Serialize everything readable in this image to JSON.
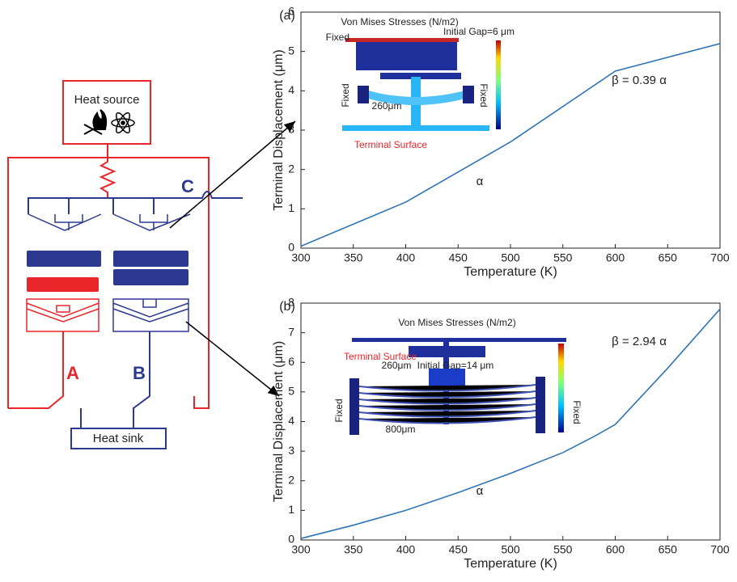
{
  "chart_data": [
    {
      "type": "line",
      "title": "(a)",
      "x_label": "Temperature (K)",
      "y_label": "Terminal Displacement (μm)",
      "x": [
        300,
        400,
        500,
        600,
        700
      ],
      "series": [
        {
          "color": "#2f74b5",
          "values": [
            0.05,
            1.17,
            2.7,
            4.5,
            5.2
          ]
        }
      ],
      "xlim": [
        300,
        700
      ],
      "xticks": [
        300,
        350,
        400,
        450,
        500,
        550,
        600,
        650,
        700
      ],
      "ylim": [
        0,
        6
      ],
      "yticks": [
        0,
        1,
        2,
        3,
        4,
        5,
        6
      ],
      "annotations": [
        "Von Mises Stresses (N/m2)",
        "Fixed",
        "Initial Gap=6 μm",
        "Fixed",
        "Fixed",
        "260μm",
        "Terminal Surface",
        "β = 0.39 α",
        "α"
      ]
    },
    {
      "type": "line",
      "title": "(b)",
      "x_label": "Temperature (K)",
      "y_label": "Terminal Displacement (μm)",
      "x": [
        300,
        350,
        400,
        450,
        500,
        550,
        580,
        600,
        650,
        700
      ],
      "series": [
        {
          "color": "#2f74b5",
          "values": [
            0.05,
            0.5,
            1.0,
            1.6,
            2.25,
            2.95,
            3.5,
            3.9,
            5.8,
            7.8
          ]
        }
      ],
      "xlim": [
        300,
        700
      ],
      "xticks": [
        300,
        350,
        400,
        450,
        500,
        550,
        600,
        650,
        700
      ],
      "ylim": [
        0,
        8
      ],
      "yticks": [
        0,
        1,
        2,
        3,
        4,
        5,
        6,
        7,
        8
      ],
      "annotations": [
        "Von Mises Stresses (N/m2)",
        "Terminal Surface",
        "260μm",
        "Initial Gap=14 μm",
        "Fixed",
        "Fixed",
        "800μm",
        "β = 2.94 α",
        "α"
      ]
    }
  ],
  "diagram": {
    "heat_source": "Heat source",
    "heat_sink": "Heat sink",
    "label_a": "A",
    "label_b": "B",
    "label_c": "C"
  }
}
